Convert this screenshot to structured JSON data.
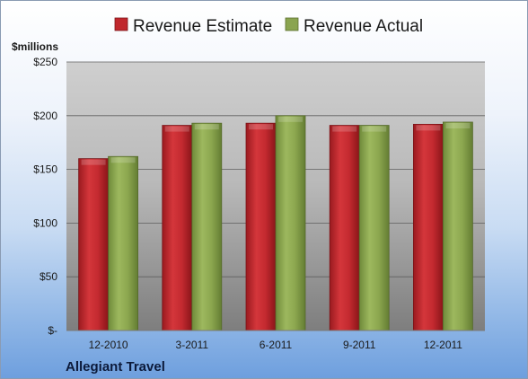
{
  "chart_data": {
    "type": "bar",
    "categories": [
      "12-2010",
      "3-2011",
      "6-2011",
      "9-2011",
      "12-2011"
    ],
    "series": [
      {
        "name": "Revenue Estimate",
        "values": [
          160,
          191,
          193,
          191,
          192
        ],
        "color": "#c0272d"
      },
      {
        "name": "Revenue Actual",
        "values": [
          162,
          193,
          200,
          191,
          194
        ],
        "color": "#8aa450"
      }
    ],
    "ylabel": "$millions",
    "ylim": [
      0,
      250
    ],
    "yticks": [
      0,
      50,
      100,
      150,
      200,
      250
    ],
    "ytick_labels": [
      "$-",
      "$50",
      "$100",
      "$150",
      "$200",
      "$250"
    ],
    "grid": true,
    "legend_position": "top",
    "footer": "Allegiant Travel"
  }
}
